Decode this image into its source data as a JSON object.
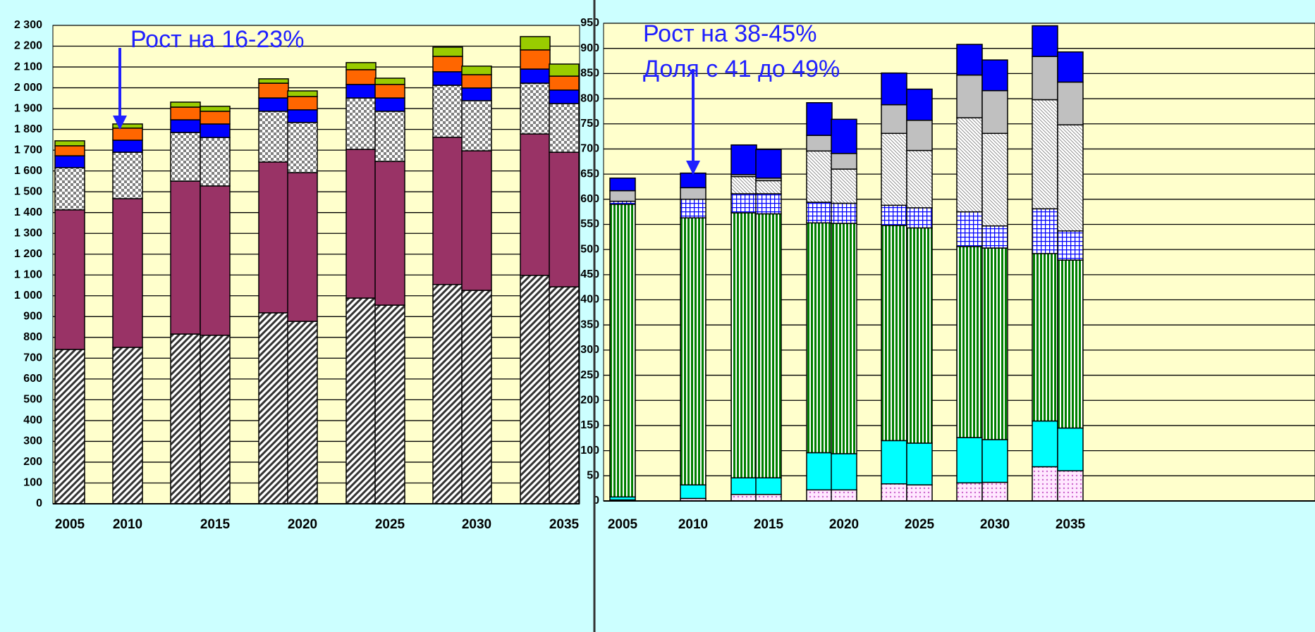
{
  "chart_data": [
    {
      "type": "bar",
      "stacked": true,
      "categories": [
        "2005",
        "2010",
        null,
        "2015",
        null,
        "2020",
        null,
        "2025",
        null,
        "2030",
        null,
        "2035"
      ],
      "ylim": [
        0,
        2300
      ],
      "yticks": [
        0,
        100,
        200,
        300,
        400,
        500,
        600,
        700,
        800,
        900,
        {
          "value": 1000,
          "label": "1 000"
        },
        {
          "value": 1100,
          "label": "1 100"
        },
        {
          "value": 1200,
          "label": "1 200"
        },
        {
          "value": 1300,
          "label": "1 300"
        },
        {
          "value": 1400,
          "label": "1 400"
        },
        {
          "value": 1500,
          "label": "1 500"
        },
        {
          "value": 1600,
          "label": "1 600"
        },
        {
          "value": 1700,
          "label": "1 700"
        },
        {
          "value": 1800,
          "label": "1 800"
        },
        {
          "value": 1900,
          "label": "1 900"
        },
        {
          "value": 2000,
          "label": "2 000"
        },
        {
          "value": 2100,
          "label": "2 100"
        },
        {
          "value": 2200,
          "label": "2 200"
        },
        {
          "value": 2300,
          "label": "2 300"
        }
      ],
      "grid": true,
      "annotations": [
        "Рост на 16-23%"
      ],
      "series": [
        {
          "color": "#333333",
          "pattern": "hatch",
          "values": [
            742,
            752,
            816,
            810,
            918,
            877,
            989,
            955,
            1054,
            1026,
            1098,
            1043
          ]
        },
        {
          "color": "#993366",
          "values": [
            671,
            715,
            735,
            718,
            725,
            715,
            715,
            691,
            708,
            671,
            680,
            647
          ]
        },
        {
          "color": "#808080",
          "pattern": "checker",
          "values": [
            203,
            223,
            234,
            233,
            244,
            241,
            247,
            241,
            250,
            241,
            244,
            234
          ]
        },
        {
          "color": "#0000ff",
          "values": [
            57,
            58,
            61,
            65,
            64,
            61,
            65,
            64,
            65,
            61,
            68,
            65
          ]
        },
        {
          "color": "#ff6600",
          "values": [
            48,
            58,
            61,
            61,
            71,
            64,
            71,
            65,
            74,
            64,
            92,
            67
          ]
        },
        {
          "color": "#99cc00",
          "values": [
            24,
            20,
            24,
            24,
            21,
            27,
            34,
            30,
            44,
            41,
            64,
            58
          ]
        }
      ]
    },
    {
      "type": "bar",
      "stacked": true,
      "categories": [
        "2005",
        "2010",
        null,
        "2015",
        null,
        "2020",
        null,
        "2025",
        null,
        "2030",
        null,
        "2035"
      ],
      "ylim": [
        0,
        950
      ],
      "yticks": [
        0,
        50,
        100,
        150,
        200,
        250,
        300,
        350,
        400,
        450,
        500,
        550,
        600,
        650,
        700,
        750,
        800,
        850,
        900,
        950
      ],
      "grid": true,
      "annotations": [
        "Рост на 38-45%",
        "Доля с 41 до 49%"
      ],
      "series": [
        {
          "color": "#cc66cc",
          "pattern": "dots",
          "values": [
            2,
            5,
            13,
            13,
            22,
            22,
            34,
            32,
            36,
            37,
            68,
            60
          ]
        },
        {
          "color": "#00ffff",
          "values": [
            6,
            27,
            33,
            33,
            74,
            72,
            86,
            83,
            90,
            85,
            91,
            85
          ]
        },
        {
          "color": "#008000",
          "pattern": "vstripes",
          "values": [
            582,
            531,
            527,
            525,
            457,
            458,
            428,
            428,
            380,
            381,
            333,
            334
          ]
        },
        {
          "color": "#0000ff",
          "pattern": "grid",
          "values": [
            6,
            37,
            38,
            40,
            41,
            40,
            40,
            40,
            69,
            44,
            89,
            58
          ]
        },
        {
          "color": "#808080",
          "pattern": "diag",
          "values": [
            0,
            0,
            34,
            26,
            102,
            68,
            143,
            114,
            187,
            184,
            217,
            211
          ]
        },
        {
          "color": "#c0c0c0",
          "values": [
            21,
            23,
            4,
            5,
            31,
            31,
            57,
            60,
            85,
            85,
            86,
            85
          ]
        },
        {
          "color": "#0000ff",
          "values": [
            25,
            29,
            59,
            57,
            65,
            68,
            63,
            62,
            61,
            61,
            61,
            60
          ]
        }
      ]
    }
  ]
}
